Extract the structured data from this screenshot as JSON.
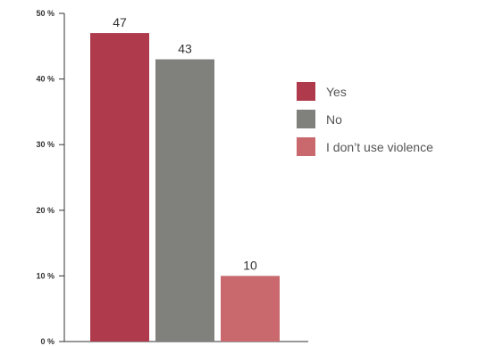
{
  "chart_data": {
    "type": "bar",
    "categories": [
      "Yes",
      "No",
      "I don’t use violence"
    ],
    "values": [
      47,
      43,
      10
    ],
    "colors": [
      "#ae3a4b",
      "#80807d",
      "#c9696e"
    ],
    "data_labels": [
      "47",
      "43",
      "10"
    ],
    "title": "",
    "xlabel": "",
    "ylabel": "",
    "ylim": [
      0,
      50
    ],
    "yticks": [
      0,
      10,
      20,
      30,
      40,
      50
    ],
    "ytick_labels": [
      "0 %",
      "10 %",
      "20 %",
      "30 %",
      "40 %",
      "50 %"
    ],
    "legend": {
      "placement": "right",
      "entries": [
        "Yes",
        "No",
        "I don’t use violence"
      ]
    },
    "grid": false
  }
}
